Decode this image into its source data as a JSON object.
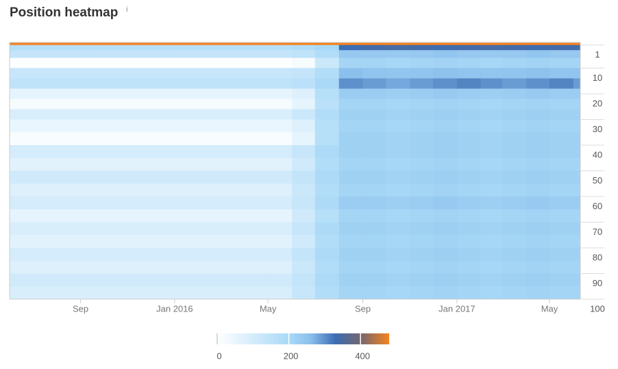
{
  "chart_data": {
    "type": "heatmap",
    "title": "Position heatmap",
    "info": "i",
    "x": [
      "2015-06",
      "2015-07",
      "2015-08",
      "2015-09",
      "2015-10",
      "2015-11",
      "2015-12",
      "2016-01",
      "2016-02",
      "2016-03",
      "2016-04",
      "2016-05",
      "2016-06",
      "2016-07",
      "2016-08",
      "2016-09",
      "2016-10",
      "2016-11",
      "2016-12",
      "2017-01",
      "2017-02",
      "2017-03",
      "2017-04",
      "2017-05",
      "2017-06"
    ],
    "xlim": [
      "2015-06-01",
      "2017-06-10"
    ],
    "xticks": [
      {
        "value": "2015-09",
        "label": "Sep"
      },
      {
        "value": "2016-01",
        "label": "Jan 2016"
      },
      {
        "value": "2016-05",
        "label": "May"
      },
      {
        "value": "2016-09",
        "label": "Sep"
      },
      {
        "value": "2017-01",
        "label": "Jan 2017"
      },
      {
        "value": "2017-05",
        "label": "May"
      }
    ],
    "y": [
      0,
      1,
      3,
      6,
      10,
      14,
      18,
      22,
      26,
      30,
      35,
      40,
      45,
      50,
      55,
      60,
      65,
      70,
      75,
      80,
      85,
      90,
      95
    ],
    "ylim": [
      0,
      100
    ],
    "yticks": [
      1,
      10,
      20,
      30,
      40,
      50,
      60,
      70,
      80,
      90,
      100
    ],
    "values": [
      [
        480,
        480,
        480,
        480,
        480,
        480,
        480,
        480,
        480,
        480,
        480,
        480,
        480,
        480,
        480,
        480,
        480,
        480,
        480,
        480,
        480,
        480,
        480,
        480,
        480
      ],
      [
        170,
        170,
        170,
        170,
        170,
        170,
        170,
        170,
        170,
        170,
        170,
        170,
        180,
        200,
        330,
        340,
        345,
        340,
        335,
        340,
        345,
        340,
        335,
        340,
        340
      ],
      [
        140,
        140,
        140,
        140,
        140,
        140,
        140,
        140,
        140,
        140,
        140,
        140,
        150,
        180,
        240,
        240,
        235,
        240,
        245,
        240,
        235,
        240,
        245,
        240,
        240
      ],
      [
        5,
        5,
        5,
        5,
        5,
        5,
        5,
        5,
        5,
        5,
        5,
        5,
        20,
        120,
        210,
        210,
        205,
        210,
        215,
        210,
        205,
        210,
        215,
        210,
        210
      ],
      [
        130,
        130,
        130,
        130,
        130,
        130,
        130,
        130,
        130,
        130,
        130,
        130,
        140,
        180,
        260,
        250,
        245,
        250,
        255,
        250,
        245,
        250,
        255,
        250,
        250
      ],
      [
        150,
        150,
        150,
        150,
        150,
        150,
        150,
        150,
        150,
        150,
        150,
        150,
        160,
        200,
        300,
        290,
        280,
        290,
        300,
        310,
        300,
        290,
        300,
        310,
        290
      ],
      [
        60,
        60,
        60,
        60,
        60,
        60,
        60,
        60,
        60,
        60,
        60,
        60,
        80,
        170,
        230,
        230,
        225,
        230,
        235,
        230,
        225,
        230,
        235,
        230,
        230
      ],
      [
        20,
        20,
        20,
        20,
        20,
        20,
        20,
        20,
        20,
        20,
        20,
        20,
        60,
        160,
        210,
        210,
        205,
        210,
        215,
        210,
        205,
        210,
        215,
        210,
        210
      ],
      [
        90,
        90,
        90,
        90,
        90,
        90,
        90,
        90,
        90,
        90,
        90,
        90,
        120,
        180,
        220,
        220,
        215,
        220,
        225,
        220,
        215,
        220,
        225,
        220,
        220
      ],
      [
        50,
        50,
        50,
        50,
        50,
        50,
        50,
        50,
        50,
        50,
        50,
        50,
        80,
        170,
        210,
        210,
        205,
        210,
        215,
        210,
        205,
        210,
        215,
        210,
        210
      ],
      [
        15,
        15,
        15,
        15,
        15,
        15,
        15,
        15,
        15,
        15,
        15,
        15,
        60,
        170,
        220,
        220,
        215,
        220,
        225,
        220,
        215,
        220,
        225,
        220,
        220
      ],
      [
        100,
        100,
        100,
        100,
        100,
        100,
        100,
        100,
        100,
        100,
        100,
        100,
        130,
        190,
        220,
        220,
        215,
        220,
        225,
        220,
        215,
        220,
        225,
        220,
        220
      ],
      [
        70,
        70,
        70,
        70,
        70,
        70,
        70,
        70,
        70,
        70,
        70,
        70,
        110,
        180,
        210,
        210,
        205,
        210,
        215,
        210,
        205,
        210,
        215,
        210,
        210
      ],
      [
        110,
        110,
        110,
        110,
        110,
        110,
        110,
        110,
        110,
        110,
        110,
        110,
        140,
        190,
        220,
        220,
        215,
        220,
        225,
        220,
        215,
        220,
        225,
        220,
        220
      ],
      [
        80,
        80,
        80,
        80,
        80,
        80,
        80,
        80,
        80,
        80,
        80,
        80,
        120,
        180,
        210,
        210,
        205,
        210,
        215,
        210,
        205,
        210,
        215,
        210,
        210
      ],
      [
        100,
        100,
        100,
        100,
        100,
        100,
        100,
        100,
        100,
        100,
        100,
        100,
        130,
        190,
        230,
        230,
        225,
        230,
        235,
        230,
        225,
        230,
        235,
        230,
        230
      ],
      [
        60,
        60,
        60,
        60,
        60,
        60,
        60,
        60,
        60,
        60,
        60,
        60,
        110,
        170,
        210,
        210,
        205,
        210,
        215,
        210,
        205,
        210,
        215,
        210,
        210
      ],
      [
        90,
        90,
        90,
        90,
        90,
        90,
        90,
        90,
        90,
        90,
        90,
        90,
        130,
        190,
        220,
        220,
        215,
        220,
        225,
        220,
        215,
        220,
        225,
        220,
        220
      ],
      [
        70,
        70,
        70,
        70,
        70,
        70,
        70,
        70,
        70,
        70,
        70,
        70,
        110,
        180,
        210,
        210,
        205,
        210,
        215,
        210,
        205,
        210,
        215,
        210,
        210
      ],
      [
        100,
        100,
        100,
        100,
        100,
        100,
        100,
        100,
        100,
        100,
        100,
        100,
        140,
        190,
        220,
        220,
        215,
        220,
        225,
        220,
        215,
        220,
        225,
        220,
        220
      ],
      [
        80,
        80,
        80,
        80,
        80,
        80,
        80,
        80,
        80,
        80,
        80,
        80,
        120,
        180,
        210,
        210,
        205,
        210,
        215,
        210,
        205,
        210,
        215,
        210,
        210
      ],
      [
        110,
        110,
        110,
        110,
        110,
        110,
        110,
        110,
        110,
        110,
        110,
        110,
        140,
        190,
        220,
        220,
        215,
        220,
        225,
        220,
        215,
        220,
        225,
        220,
        220
      ],
      [
        90,
        90,
        90,
        90,
        90,
        90,
        90,
        90,
        90,
        90,
        90,
        90,
        130,
        180,
        210,
        210,
        205,
        210,
        215,
        210,
        205,
        210,
        215,
        210,
        210
      ]
    ],
    "zlim": [
      0,
      480
    ],
    "zticks": [
      0,
      200,
      400
    ],
    "colorscale": [
      [
        0,
        "#ffffff"
      ],
      [
        200,
        "#a9d9f7"
      ],
      [
        260,
        "#8cc0ec"
      ],
      [
        330,
        "#3c6db3"
      ],
      [
        400,
        "#736670"
      ],
      [
        480,
        "#f5821f"
      ]
    ]
  }
}
